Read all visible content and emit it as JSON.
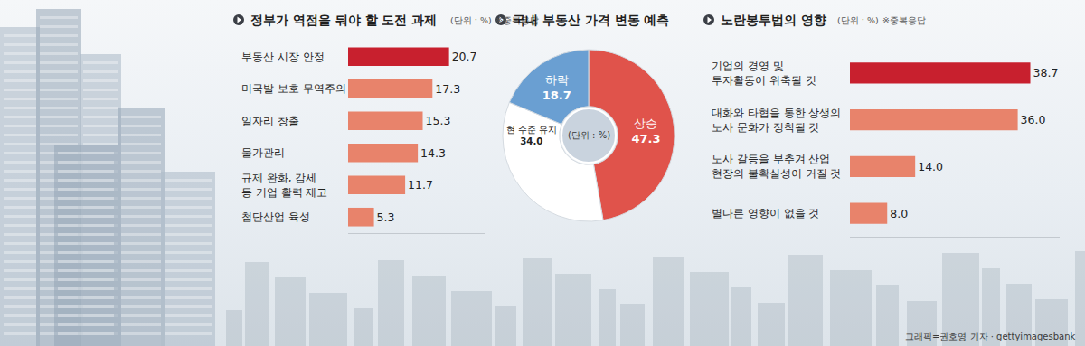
{
  "chart_data": [
    {
      "type": "bar",
      "title": "정부가 역점을 둬야 할 도전 과제",
      "subtitle": "(단위 : %)",
      "annotations": [
        "※중복응답"
      ],
      "orientation": "horizontal",
      "categories": [
        "부동산 시장 안정",
        "미국발 보호 무역주의",
        "일자리 창출",
        "물가관리",
        "규제 완화, 감세 등 기업 활력 제고",
        "첨단산업 육성"
      ],
      "values": [
        20.7,
        17.3,
        15.3,
        14.3,
        11.7,
        5.3
      ],
      "colors": [
        "#c8202e",
        "#e8836b",
        "#e8836b",
        "#e8836b",
        "#e8836b",
        "#e8836b"
      ],
      "xlim": [
        0,
        28
      ],
      "data_labels": true,
      "tick_labels": false,
      "grid": false
    },
    {
      "type": "pie",
      "title": "국내 부동산 가격 변동 예측",
      "annotations": [
        "(단위 : %)"
      ],
      "categories": [
        "상승",
        "현 수준 유지",
        "하락"
      ],
      "values": [
        47.3,
        34.0,
        18.7
      ],
      "value_labels": [
        "47.3",
        "34.0",
        "18.7"
      ],
      "colors": [
        "#e0534b",
        "#ffffff",
        "#6a9fd2"
      ],
      "data_labels": true
    },
    {
      "type": "bar",
      "title": "노란봉투법의 영향",
      "subtitle": "(단위 : %)",
      "annotations": [
        "※중복응답"
      ],
      "orientation": "horizontal",
      "categories": [
        "기업의 경영 및 투자활동이 위축될 것",
        "대화와 타협을 통한 상생의 노사 문화가 정착될 것",
        "노사 갈등을 부추겨 산업 현장의 불확실성이 커질 것",
        "별다른 영향이 없을 것"
      ],
      "values": [
        38.7,
        36.0,
        14.0,
        8.0
      ],
      "value_labels": [
        "38.7",
        "36.0",
        "14.0",
        "8.0"
      ],
      "colors": [
        "#c8202e",
        "#e8836b",
        "#e8836b",
        "#e8836b"
      ],
      "xlim": [
        0,
        45
      ],
      "data_labels": true,
      "tick_labels": false,
      "grid": false
    }
  ],
  "credit": "그래픽=권호영 기자 · gettyimagesbank"
}
